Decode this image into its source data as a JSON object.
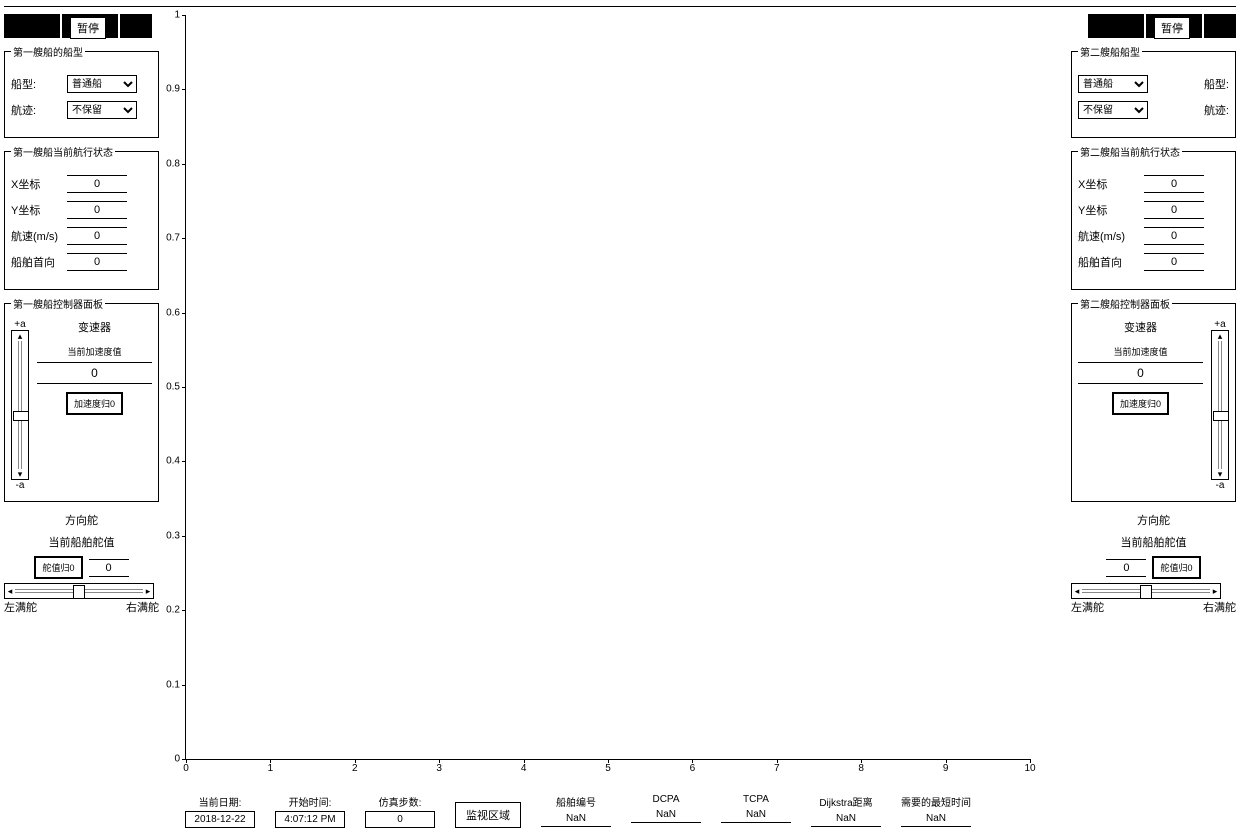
{
  "colors": {
    "bg": "#ffffff",
    "line": "#000000"
  },
  "buttons": {
    "pause": "暂停"
  },
  "ship1": {
    "panel_type_title": "第一艘船的船型",
    "type_label": "船型:",
    "type_value": "普通船",
    "track_label": "航迹:",
    "track_value": "不保留",
    "state_title": "第一艘船当前航行状态",
    "x_label": "X坐标",
    "x_val": "0",
    "y_label": "Y坐标",
    "y_val": "0",
    "speed_label": "航速(m/s)",
    "speed_val": "0",
    "heading_label": "船舶首向",
    "heading_val": "0",
    "ctrl_title": "第一艘船控制器面板",
    "plus_a": "+a",
    "minus_a": "-a",
    "gear_title": "变速器",
    "acc_label": "当前加速度值",
    "acc_val": "0",
    "acc_reset": "加速度归0",
    "rudder_title": "方向舵",
    "rudder_cur": "当前船舶舵值",
    "rudder_val": "0",
    "rudder_reset": "舵值归0",
    "left_full": "左满舵",
    "right_full": "右满舵"
  },
  "ship2": {
    "panel_type_title": "第二艘船船型",
    "type_label": "船型:",
    "type_value": "普通船",
    "track_label": "航迹:",
    "track_value": "不保留",
    "state_title": "第二艘船当前航行状态",
    "x_label": "X坐标",
    "x_val": "0",
    "y_label": "Y坐标",
    "y_val": "0",
    "speed_label": "航速(m/s)",
    "speed_val": "0",
    "heading_label": "船舶首向",
    "heading_val": "0",
    "ctrl_title": "第二艘船控制器面板",
    "plus_a": "+a",
    "minus_a": "-a",
    "gear_title": "变速器",
    "acc_label": "当前加速度值",
    "acc_val": "0",
    "acc_reset": "加速度归0",
    "rudder_title": "方向舵",
    "rudder_cur": "当前船舶舵值",
    "rudder_val": "0",
    "rudder_reset": "舵值归0",
    "left_full": "左满舵",
    "right_full": "右满舵"
  },
  "chart": {
    "x_min": 0,
    "x_max": 10,
    "x_step": 1,
    "y_min": 0,
    "y_max": 1,
    "y_step": 0.1,
    "y_ticks": [
      "0",
      "0.1",
      "0.2",
      "0.3",
      "0.4",
      "0.5",
      "0.6",
      "0.7",
      "0.8",
      "0.9",
      "1"
    ],
    "x_ticks": [
      "0",
      "1",
      "2",
      "3",
      "4",
      "5",
      "6",
      "7",
      "8",
      "9",
      "10"
    ]
  },
  "bottom": {
    "date_label": "当前日期:",
    "date_val": "2018-12-22",
    "start_label": "开始时间:",
    "start_val": "4:07:12 PM",
    "steps_label": "仿真步数:",
    "steps_val": "0",
    "monitor_btn": "监视区域",
    "shipno_label": "船舶编号",
    "shipno_val": "NaN",
    "dcpa_label": "DCPA",
    "dcpa_val": "NaN",
    "tcpa_label": "TCPA",
    "tcpa_val": "NaN",
    "dij_label": "Dijkstra距离",
    "dij_val": "NaN",
    "time_label": "需要的最短时间",
    "time_val": "NaN"
  }
}
